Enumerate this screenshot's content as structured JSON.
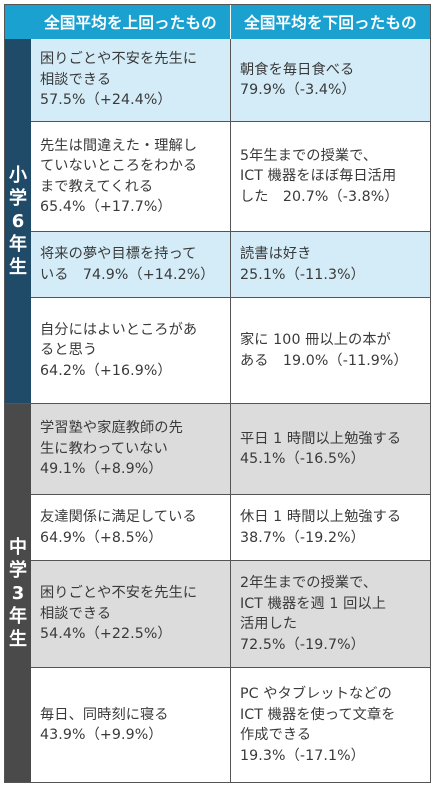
{
  "header": {
    "left": "全国平均を上回ったもの",
    "right": "全国平均を下回ったもの"
  },
  "groups": [
    {
      "label": [
        "小",
        "学",
        "6",
        "年",
        "生"
      ],
      "rows": [
        {
          "left": "困りごとや不安を先生に\n相談できる\n57.5%（+24.4%）",
          "right": "朝食を毎日食べる\n79.9%（-3.4%）"
        },
        {
          "left": "先生は間違えた・理解し\nていないところをわかる\nまで教えてくれる\n65.4%（+17.7%）",
          "right": "5年生までの授業で、\nICT 機器をほぼ毎日活用\nした　20.7%（-3.8%）"
        },
        {
          "left": "将来の夢や目標を持って\nいる　74.9%（+14.2%）",
          "right": "読書は好き\n25.1%（-11.3%）"
        },
        {
          "left": "自分にはよいところがあ\nると思う\n64.2%（+16.9%）",
          "right": "家に 100 冊以上の本が\nある　19.0%（-11.9%）"
        }
      ]
    },
    {
      "label": [
        "中",
        "学",
        "3",
        "年",
        "生"
      ],
      "rows": [
        {
          "left": "学習塾や家庭教師の先\n生に教わっていない\n49.1%（+8.9%）",
          "right": "平日 1 時間以上勉強する\n45.1%（-16.5%）"
        },
        {
          "left": "友達関係に満足している\n64.9%（+8.5%）",
          "right": "休日 1 時間以上勉強する\n38.7%（-19.2%）"
        },
        {
          "left": "困りごとや不安を先生に\n相談できる\n54.4%（+22.5%）",
          "right": "2年生までの授業で、\nICT 機器を週 1 回以上\n活用した\n72.5%（-19.7%）"
        },
        {
          "left": "毎日、同時刻に寝る\n43.9%（+9.9%）",
          "right": "PC やタブレットなどの\nICT 機器を使って文章を\n作成できる\n19.3%（-17.1%）"
        }
      ]
    }
  ],
  "colors": {
    "header": "#1aa1d0",
    "elementary_label": "#1f4b68",
    "junior_label": "#4a4a4a",
    "elementary_shade": "#d3ecf8",
    "junior_shade": "#dcdcdc"
  }
}
